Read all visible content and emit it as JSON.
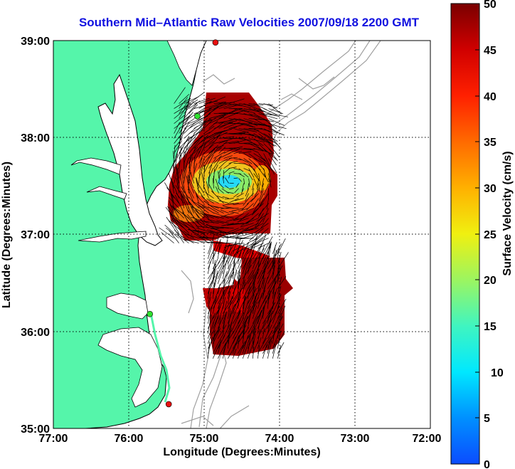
{
  "chart_data": {
    "type": "heatmap",
    "title": "Southern Mid–Atlantic Raw Velocities 2007/09/18 2200 GMT",
    "xlabel": "Longitude (Degrees:Minutes)",
    "ylabel": "Latitude (Degrees:Minutes)",
    "colorbar_label": "Surface Velocity (cm/s)",
    "x_ticks": [
      "77:00",
      "76:00",
      "75:00",
      "74:00",
      "73:00",
      "72:00"
    ],
    "y_ticks": [
      "39:00",
      "38:00",
      "37:00",
      "36:00",
      "35:00"
    ],
    "xlim": [
      -77,
      -72
    ],
    "ylim": [
      35,
      39
    ],
    "colorbar_ticks": [
      "50",
      "45",
      "40",
      "35",
      "30",
      "25",
      "20",
      "15",
      "10",
      "5",
      "0"
    ],
    "colorbar_range": [
      0,
      50
    ],
    "grid": true,
    "stations": [
      {
        "lon": -74.85,
        "lat": 38.98,
        "color": "#e81010"
      },
      {
        "lon": -75.09,
        "lat": 38.22,
        "color": "#30e030"
      },
      {
        "lon": -75.72,
        "lat": 36.18,
        "color": "#30e030"
      },
      {
        "lon": -75.47,
        "lat": 35.25,
        "color": "#e81010"
      }
    ],
    "velocity_field_regions": [
      {
        "lon_min": -75.4,
        "lon_max": -74.1,
        "lat_min": 36.9,
        "lat_max": 38.35,
        "core_lon": -74.6,
        "core_lat": 37.55,
        "core_speed": 10,
        "edge_speed": 50
      },
      {
        "lon_min": -74.95,
        "lon_max": -74.0,
        "lat_min": 35.7,
        "lat_max": 36.8,
        "core_lon": -74.4,
        "core_lat": 36.3,
        "core_speed": 50,
        "edge_speed": 50
      }
    ]
  },
  "colors": {
    "land": "#55f5aa",
    "coastline": "#000000",
    "bathymetry": "#a0a0a0",
    "title": "#1010e0"
  }
}
